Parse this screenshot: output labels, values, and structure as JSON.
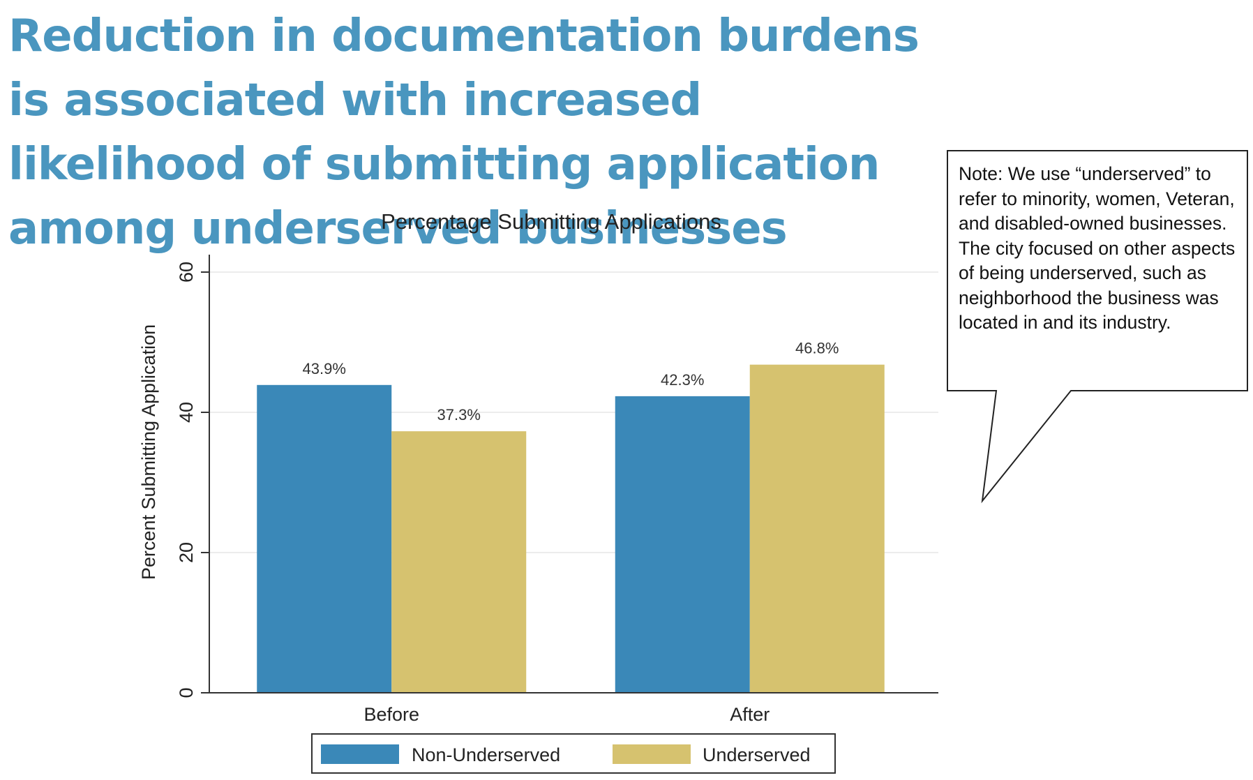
{
  "headline": "Reduction in documentation burdens is associated with increased likelihood of submitting application among underserved businesses",
  "note": "Note: We use “underserved” to refer to minority, women, Veteran, and disabled-owned businesses. The city focused on other aspects of being underserved, such as neighborhood the business was located in and its industry.",
  "chart_data": {
    "type": "bar",
    "title": "Percentage Submitting Applications",
    "ylabel": "Percent Submitting Application",
    "xlabel": "",
    "categories": [
      "Before",
      "After"
    ],
    "series": [
      {
        "name": "Non-Underserved",
        "values": [
          43.9,
          42.3
        ],
        "labels": [
          "43.9%",
          "42.3%"
        ],
        "color": "#3a88b8"
      },
      {
        "name": "Underserved",
        "values": [
          37.3,
          46.8
        ],
        "labels": [
          "37.3%",
          "46.8%"
        ],
        "color": "#d6c26f"
      }
    ],
    "ylim": [
      0,
      60
    ],
    "yticks": [
      0,
      20,
      40,
      60
    ],
    "grid": true,
    "legend_position": "bottom"
  }
}
